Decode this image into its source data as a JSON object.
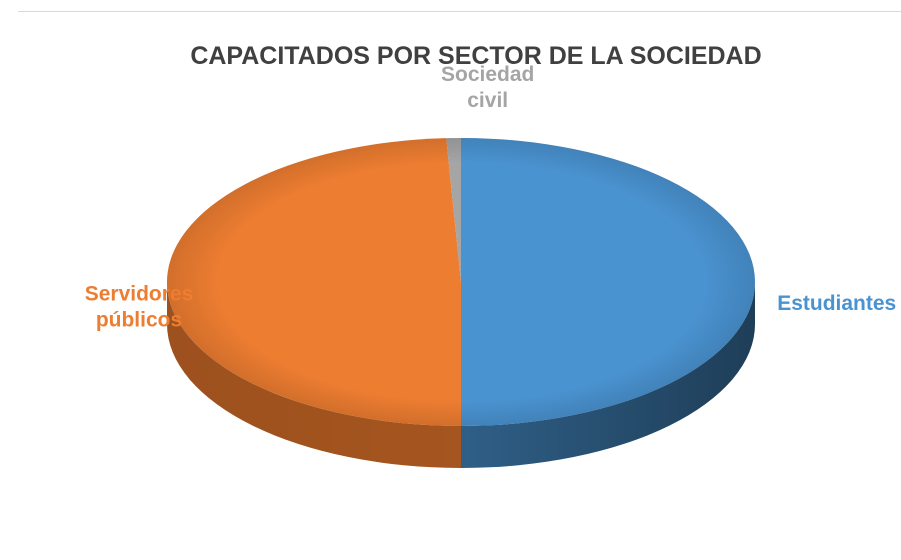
{
  "chart_data": {
    "type": "pie",
    "title": "CAPACITADOS POR SECTOR DE LA SOCIEDAD",
    "slices": [
      {
        "label": "Estudiantes",
        "lines": [
          "Estudiantes"
        ],
        "value": 50.0,
        "color": "#4a93d1",
        "side": "#2f5f87"
      },
      {
        "label": "Servidores públicos",
        "lines": [
          "Servidores",
          "públicos"
        ],
        "value": 49.2,
        "color": "#ed7d31",
        "side": "#a5551f"
      },
      {
        "label": "Sociedad civil",
        "lines": [
          "Sociedad",
          "civil"
        ],
        "value": 0.8,
        "color": "#a5a5a5",
        "side": "#6e6e6e"
      }
    ],
    "labels_on_chart": true,
    "legend": "none",
    "style": "3d"
  }
}
